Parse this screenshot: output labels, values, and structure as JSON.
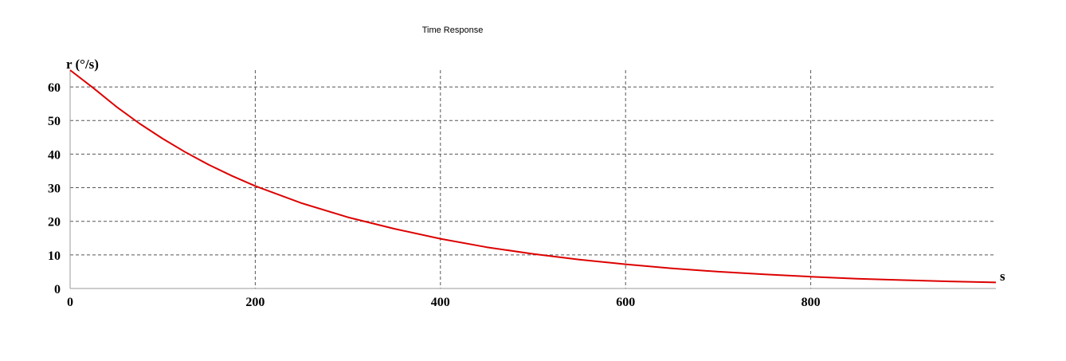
{
  "chart_data": {
    "type": "line",
    "title": "Time Response",
    "xlabel": "s",
    "ylabel": "r (°/s)",
    "xlim": [
      0,
      1000
    ],
    "ylim": [
      0,
      65
    ],
    "xticks": [
      0,
      200,
      400,
      600,
      800
    ],
    "yticks": [
      0,
      10,
      20,
      30,
      40,
      50,
      60
    ],
    "grid": true,
    "series": [
      {
        "color": "#dd0000",
        "x": [
          0,
          25,
          50,
          75,
          100,
          125,
          150,
          175,
          200,
          250,
          300,
          350,
          400,
          450,
          500,
          550,
          600,
          650,
          700,
          750,
          800,
          850,
          900,
          950,
          1000
        ],
        "y": [
          65,
          59.7,
          54.1,
          49.1,
          44.6,
          40.5,
          36.8,
          33.5,
          30.5,
          25.4,
          21.2,
          17.8,
          14.8,
          12.3,
          10.3,
          8.6,
          7.2,
          6.0,
          5.0,
          4.2,
          3.5,
          2.9,
          2.5,
          2.1,
          1.8
        ]
      }
    ]
  }
}
